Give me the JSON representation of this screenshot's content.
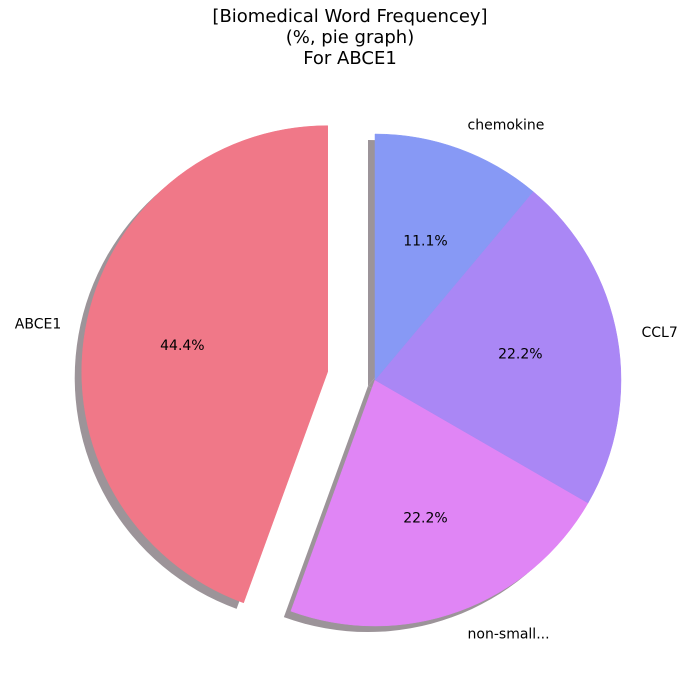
{
  "chart_data": {
    "type": "pie",
    "title": [
      "[Biomedical Word Frequencey]",
      "(%, pie graph)",
      "For ABCE1"
    ],
    "slices": [
      {
        "label": "ABCE1",
        "value": 44.4,
        "pct_label": "44.4%",
        "color": "#f07888",
        "exploded": true
      },
      {
        "label": "non-small...",
        "value": 22.2,
        "pct_label": "22.2%",
        "color": "#e085f5",
        "exploded": false
      },
      {
        "label": "CCL7",
        "value": 22.2,
        "pct_label": "22.2%",
        "color": "#aa87f5",
        "exploded": false
      },
      {
        "label": "chemokine",
        "value": 11.1,
        "pct_label": "11.1%",
        "color": "#8799f5",
        "exploded": false
      }
    ],
    "start_angle_deg": 90,
    "direction": "counterclockwise",
    "shadow": true
  }
}
